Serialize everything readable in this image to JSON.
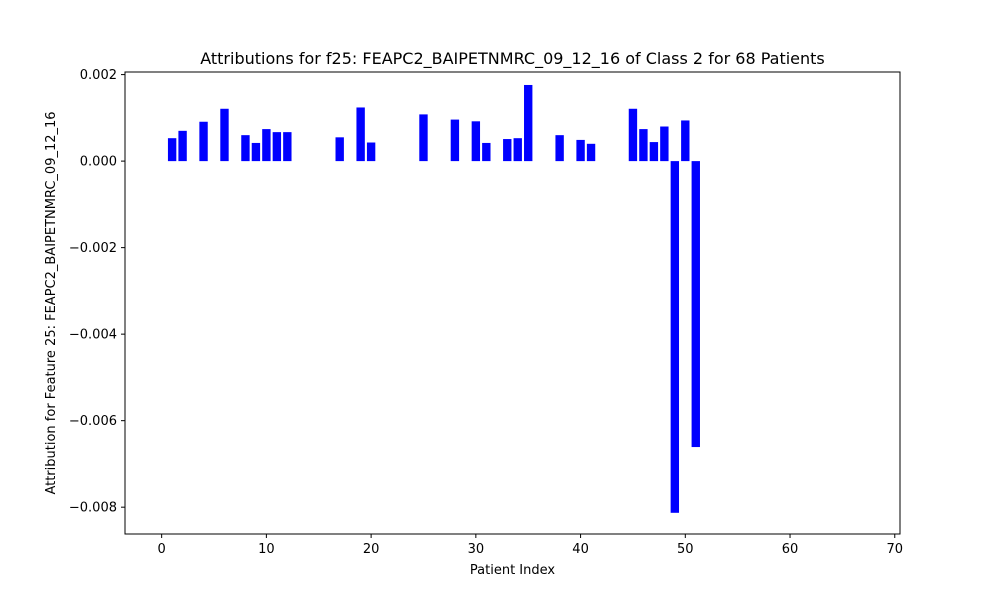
{
  "chart_data": {
    "type": "bar",
    "title": "Attributions for f25: FEAPC2_BAIPETNMRC_09_12_16 of Class 2 for 68 Patients",
    "xlabel": "Patient Index",
    "ylabel": "Attribution for Feature 25: FEAPC2_BAIPETNMRC_09_12_16",
    "xlim": [
      -3.5,
      70.5
    ],
    "ylim": [
      -0.00862,
      0.00206
    ],
    "xticks": [
      0,
      10,
      20,
      30,
      40,
      50,
      60,
      70
    ],
    "xtick_labels": [
      "0",
      "10",
      "20",
      "30",
      "40",
      "50",
      "60",
      "70"
    ],
    "yticks": [
      0.002,
      0.0,
      -0.002,
      -0.004,
      -0.006,
      -0.008
    ],
    "ytick_labels": [
      "0.002",
      "0.000",
      "−0.002",
      "−0.004",
      "−0.006",
      "−0.008"
    ],
    "bar_color": "#0000ff",
    "grid": false,
    "x": [
      1,
      2,
      4,
      6,
      8,
      9,
      10,
      11,
      12,
      17,
      19,
      20,
      25,
      28,
      30,
      31,
      33,
      34,
      35,
      38,
      40,
      41,
      45,
      46,
      47,
      48,
      49,
      50,
      51
    ],
    "values": [
      0.00053,
      0.0007,
      0.00091,
      0.00121,
      0.0006,
      0.00042,
      0.00074,
      0.00067,
      0.00067,
      0.00055,
      0.00124,
      0.00043,
      0.00108,
      0.00096,
      0.00092,
      0.00042,
      0.00051,
      0.00053,
      0.00176,
      0.0006,
      0.00049,
      0.0004,
      0.00121,
      0.00074,
      0.00044,
      0.0008,
      -0.00813,
      0.00094,
      -0.00661
    ]
  }
}
